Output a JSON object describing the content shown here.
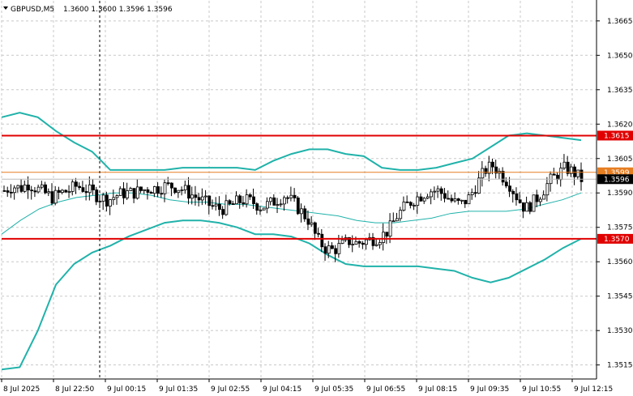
{
  "header": {
    "symbol": "GBPUSD,M5",
    "ohlc": "1.3600 1.3600 1.3596 1.3596",
    "menu_icon": "triangle-down-icon"
  },
  "colors": {
    "grid": "#c8c8c8",
    "band": "#20b2aa",
    "level": "#e00000",
    "ask_line": "#e67e22",
    "candle": "#000000",
    "background": "#ffffff"
  },
  "price_labels": {
    "level_high": "1.3615",
    "ask": "1.3599",
    "bid": "1.3596",
    "level_low": "1.3570"
  },
  "chart_data": {
    "type": "line",
    "y_ticks": [
      "1.3665",
      "1.3650",
      "1.3635",
      "1.3620",
      "1.3605",
      "1.3590",
      "1.3575",
      "1.3560",
      "1.3545",
      "1.3530",
      "1.3515"
    ],
    "x_ticks": [
      "8 Jul 2025",
      "8 Jul 22:50",
      "9 Jul 00:15",
      "9 Jul 01:35",
      "9 Jul 02:55",
      "9 Jul 04:15",
      "9 Jul 05:35",
      "9 Jul 06:55",
      "9 Jul 08:15",
      "9 Jul 09:35",
      "9 Jul 10:55",
      "9 Jul 12:15"
    ],
    "ylim": [
      1.3511,
      1.3672
    ],
    "levels": [
      1.3615,
      1.357
    ],
    "ask": 1.3599,
    "bid": 1.3596,
    "series": [
      {
        "values": [
          1.3591,
          1.3593,
          1.3592,
          1.3594,
          1.3592,
          1.359,
          1.3588,
          1.359,
          1.3591,
          1.3593,
          1.3592,
          1.359,
          1.3588,
          1.3587,
          1.3589,
          1.359,
          1.359,
          1.3591,
          1.3592,
          1.3592,
          1.3593,
          1.3593,
          1.3592,
          1.359,
          1.3588,
          1.3586,
          1.3584,
          1.3583,
          1.3584,
          1.3586,
          1.3587,
          1.3586,
          1.3584,
          1.3585,
          1.3587,
          1.3589,
          1.3586,
          1.3582,
          1.3578,
          1.357,
          1.3566,
          1.3565,
          1.3567,
          1.3569,
          1.3568,
          1.3569,
          1.357,
          1.3571,
          1.3574,
          1.358,
          1.3584,
          1.3587,
          1.3589,
          1.3591,
          1.3591,
          1.3589,
          1.3586,
          1.3585,
          1.3588,
          1.3594,
          1.36,
          1.3602,
          1.3598,
          1.3594,
          1.3588,
          1.3583,
          1.3586,
          1.359,
          1.3595,
          1.3598,
          1.3601,
          1.3599,
          1.3596
        ]
      },
      {
        "values": [
          1.3572,
          1.3578,
          1.3583,
          1.3586,
          1.3588,
          1.3589,
          1.359,
          1.359,
          1.3589,
          1.3587,
          1.3586,
          1.3586,
          1.3585,
          1.3585,
          1.3584,
          1.3583,
          1.3582,
          1.3581,
          1.358,
          1.3578,
          1.3577,
          1.3577,
          1.3578,
          1.3579,
          1.3581,
          1.3582,
          1.3582,
          1.3582,
          1.3583,
          1.3585,
          1.3587,
          1.359
        ]
      },
      {
        "values": [
          1.3623,
          1.3625,
          1.3623,
          1.3617,
          1.3612,
          1.3608,
          1.36,
          1.36,
          1.36,
          1.36,
          1.3601,
          1.3601,
          1.3601,
          1.3601,
          1.36,
          1.3604,
          1.3607,
          1.3609,
          1.3609,
          1.3607,
          1.3606,
          1.3601,
          1.36,
          1.36,
          1.3601,
          1.3603,
          1.3605,
          1.361,
          1.3615,
          1.3616,
          1.3615,
          1.3614,
          1.3613
        ]
      },
      {
        "values": [
          1.3513,
          1.3514,
          1.353,
          1.355,
          1.3559,
          1.3564,
          1.3567,
          1.3571,
          1.3574,
          1.3577,
          1.3578,
          1.3578,
          1.3577,
          1.3575,
          1.3572,
          1.3572,
          1.3571,
          1.3568,
          1.3563,
          1.3559,
          1.3558,
          1.3558,
          1.3558,
          1.3558,
          1.3557,
          1.3556,
          1.3553,
          1.3551,
          1.3553,
          1.3557,
          1.3561,
          1.3566,
          1.357
        ]
      }
    ]
  }
}
